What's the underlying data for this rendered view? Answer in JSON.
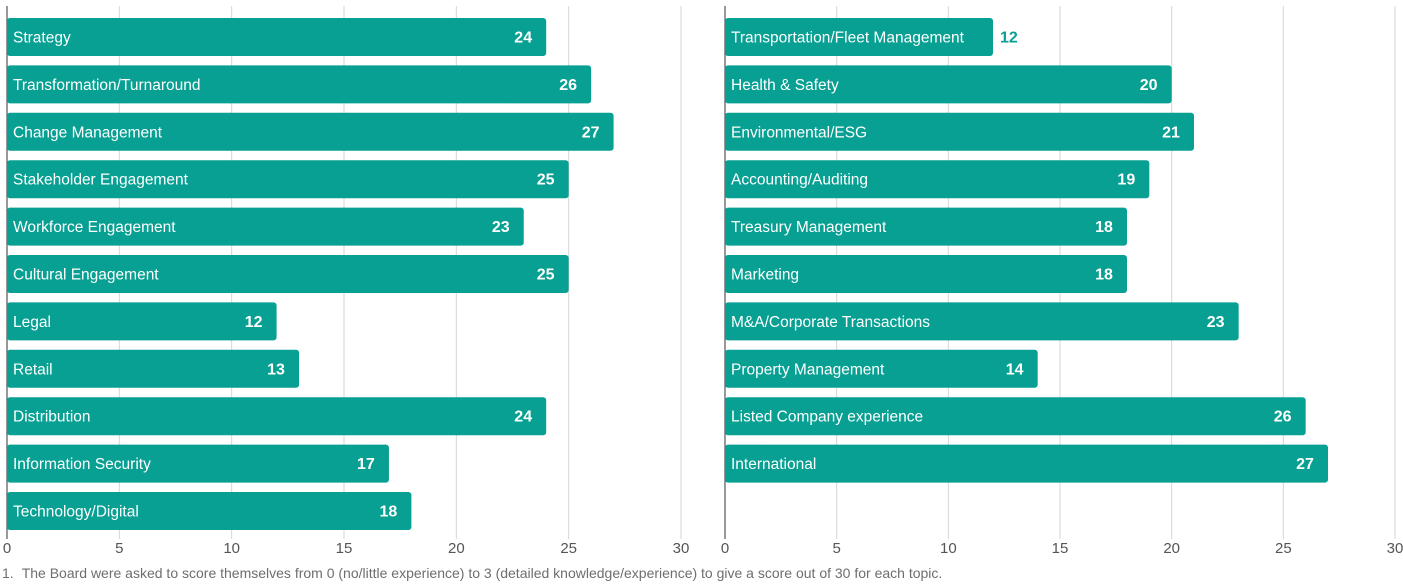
{
  "chart_data": [
    {
      "type": "bar",
      "orientation": "horizontal",
      "xlim": [
        0,
        30
      ],
      "xticks": [
        0,
        5,
        10,
        15,
        20,
        25,
        30
      ],
      "grid": true,
      "bar_color": "#07a092",
      "categories": [
        "Strategy",
        "Transformation/Turnaround",
        "Change Management",
        "Stakeholder Engagement",
        "Workforce Engagement",
        "Cultural Engagement",
        "Legal",
        "Retail",
        "Distribution",
        "Information Security",
        "Technology/Digital"
      ],
      "values": [
        24,
        26,
        27,
        25,
        23,
        25,
        12,
        13,
        24,
        17,
        18
      ]
    },
    {
      "type": "bar",
      "orientation": "horizontal",
      "xlim": [
        0,
        30
      ],
      "xticks": [
        0,
        5,
        10,
        15,
        20,
        25,
        30
      ],
      "grid": true,
      "bar_color": "#07a092",
      "categories": [
        "Transportation/Fleet Management",
        "Health & Safety",
        "Environmental/ESG",
        "Accounting/Auditing",
        "Treasury Management",
        "Marketing",
        "M&A/Corporate Transactions",
        "Property Management",
        "Listed Company experience",
        "International"
      ],
      "values": [
        12,
        20,
        21,
        19,
        18,
        18,
        23,
        14,
        26,
        27
      ]
    }
  ],
  "footnote": {
    "number": "1.",
    "text": "The Board were asked to score themselves from 0 (no/little experience) to 3 (detailed knowledge/experience) to give a score out of 30 for each topic."
  }
}
